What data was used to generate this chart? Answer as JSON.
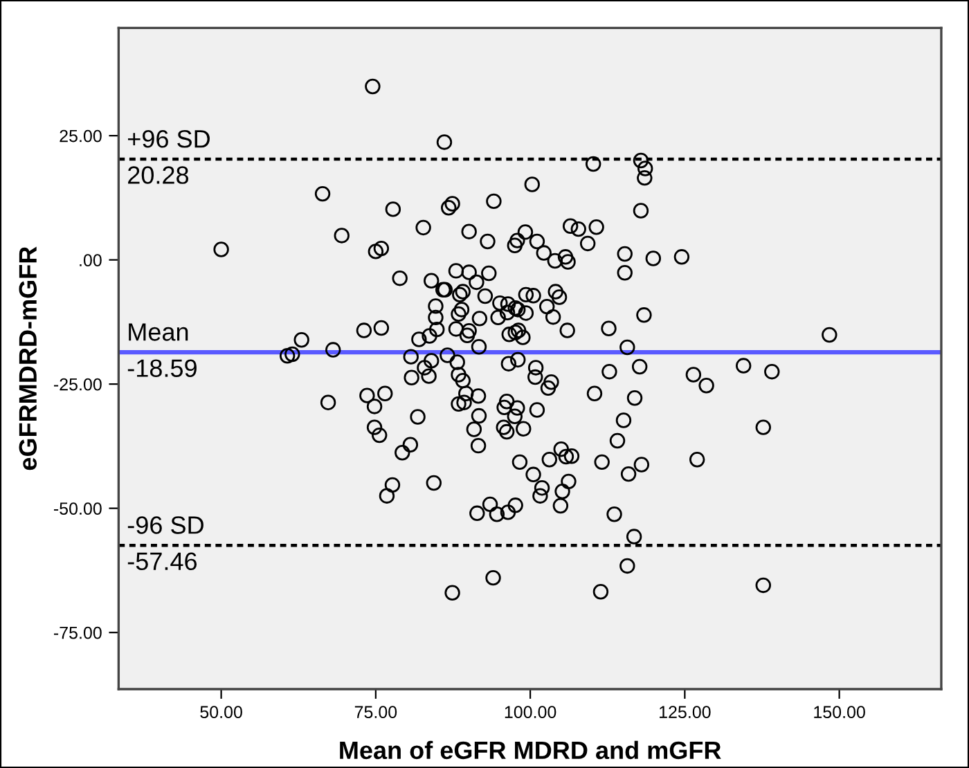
{
  "chart_data": {
    "type": "scatter",
    "xlabel": "Mean of eGFR MDRD and mGFR",
    "ylabel": "eGFRMDRD-mGFR",
    "xlim": [
      33.4,
      166.5
    ],
    "ylim": [
      -86.4,
      46.7
    ],
    "xticks": [
      {
        "value": 50,
        "label": "50.00"
      },
      {
        "value": 75,
        "label": "75.00"
      },
      {
        "value": 100,
        "label": "100.00"
      },
      {
        "value": 125,
        "label": "125.00"
      },
      {
        "value": 150,
        "label": "150.00"
      }
    ],
    "yticks": [
      {
        "value": -75,
        "label": "-75.00"
      },
      {
        "value": -50,
        "label": "-50.00"
      },
      {
        "value": -25,
        "label": "-25.00"
      },
      {
        "value": 0,
        "label": ".00"
      },
      {
        "value": 25,
        "label": "25.00"
      }
    ],
    "grid": false,
    "legend": false,
    "marker": "circle",
    "ref_lines": [
      {
        "axis": "y",
        "value": 20.28,
        "label": "+96 SD\n20.28",
        "color": "#000000",
        "line_style": "dotted"
      },
      {
        "axis": "y",
        "value": -18.59,
        "label": "Mean\n-18.59",
        "color": "#5a5aff",
        "line_style": "solid"
      },
      {
        "axis": "y",
        "value": -57.46,
        "label": "-96 SD\n-57.46",
        "color": "#000000",
        "line_style": "dotted"
      }
    ],
    "series": [
      {
        "color": "#000000",
        "x": [
          74.5,
          86.1,
          66.4,
          77.8,
          86.8,
          87.4,
          69.5,
          82.7,
          90.1,
          50.0,
          75.0,
          75.9,
          78.9,
          84.0,
          88.0,
          90.1,
          85.9,
          86.2,
          88.6,
          89.1,
          84.7,
          88.9,
          88.4,
          84.7,
          73.1,
          75.9,
          88.0,
          90.1,
          89.8,
          84.9,
          83.7,
          82.0,
          63.0,
          68.1,
          60.7,
          61.5,
          80.7,
          86.6,
          88.2,
          82.9,
          84.0,
          83.6,
          80.8,
          88.4,
          89.1,
          89.6,
          91.6,
          88.4,
          89.3,
          73.6,
          74.8,
          76.5,
          67.3,
          81.8,
          91.7,
          90.9,
          74.8,
          75.6,
          91.6,
          80.6,
          79.3,
          84.4,
          77.7,
          76.8,
          91.4,
          87.4,
          110.2,
          117.9,
          118.6,
          118.5,
          100.3,
          94.1,
          117.9,
          106.5,
          107.8,
          110.7,
          99.2,
          93.1,
          97.9,
          97.5,
          101.1,
          109.3,
          102.2,
          104.0,
          105.7,
          106.1,
          115.3,
          119.9,
          124.5,
          115.3,
          93.3,
          91.3,
          92.7,
          99.3,
          100.5,
          104.1,
          104.7,
          95.1,
          96.4,
          102.7,
          97.6,
          98.0,
          94.8,
          96.3,
          99.3,
          91.8,
          103.7,
          118.4,
          106.0,
          96.6,
          97.6,
          98.1,
          98.8,
          112.7,
          148.4,
          91.7,
          115.7,
          96.5,
          98.0,
          100.9,
          100.8,
          103.4,
          102.9,
          112.8,
          117.7,
          110.4,
          116.9,
          126.4,
          128.5,
          134.5,
          139.1,
          96.2,
          95.8,
          97.9,
          97.5,
          101.1,
          95.7,
          96.2,
          98.9,
          115.1,
          137.7,
          114.1,
          127.0,
          98.3,
          100.5,
          103.1,
          105.0,
          105.8,
          106.7,
          111.6,
          115.9,
          118.0,
          106.2,
          105.2,
          101.9,
          101.6,
          104.9,
          93.5,
          94.6,
          96.4,
          97.6,
          113.6,
          116.8,
          115.7,
          94.0,
          111.4,
          137.7
        ],
        "values": [
          34.9,
          23.7,
          13.3,
          10.2,
          10.5,
          11.3,
          4.9,
          6.5,
          5.7,
          2.1,
          1.7,
          2.3,
          -3.7,
          -4.2,
          -2.2,
          -2.5,
          -6.0,
          -6.0,
          -7.0,
          -6.4,
          -9.3,
          -10.0,
          -10.9,
          -11.6,
          -14.2,
          -13.7,
          -13.9,
          -14.3,
          -15.2,
          -14.0,
          -15.3,
          -16.0,
          -16.1,
          -18.1,
          -19.3,
          -19.0,
          -19.5,
          -19.2,
          -20.6,
          -21.7,
          -20.3,
          -23.4,
          -23.7,
          -23.1,
          -24.3,
          -26.9,
          -27.4,
          -29.0,
          -28.7,
          -27.3,
          -29.5,
          -26.9,
          -28.7,
          -31.6,
          -31.4,
          -34.1,
          -33.7,
          -35.3,
          -37.4,
          -37.2,
          -38.8,
          -44.9,
          -45.3,
          -47.5,
          -51.0,
          -67.0,
          19.3,
          20.0,
          18.4,
          16.5,
          15.2,
          11.8,
          9.9,
          6.8,
          6.2,
          6.6,
          5.6,
          3.7,
          3.9,
          2.9,
          3.7,
          3.3,
          1.4,
          -0.2,
          0.6,
          -0.4,
          1.2,
          0.3,
          0.6,
          -2.6,
          -2.7,
          -4.5,
          -7.3,
          -7.0,
          -7.2,
          -6.4,
          -7.5,
          -8.7,
          -8.9,
          -9.4,
          -9.7,
          -10.0,
          -11.6,
          -10.6,
          -10.7,
          -11.8,
          -11.5,
          -11.1,
          -14.2,
          -15.0,
          -14.6,
          -14.2,
          -15.6,
          -13.8,
          -15.1,
          -17.5,
          -17.6,
          -20.9,
          -20.1,
          -21.7,
          -23.6,
          -24.6,
          -25.8,
          -22.5,
          -21.5,
          -26.9,
          -27.8,
          -23.1,
          -25.3,
          -21.3,
          -22.5,
          -28.5,
          -29.7,
          -29.8,
          -31.5,
          -30.2,
          -33.7,
          -34.6,
          -34.0,
          -32.3,
          -33.7,
          -36.4,
          -40.2,
          -40.7,
          -43.2,
          -40.2,
          -38.1,
          -39.6,
          -39.5,
          -40.7,
          -43.1,
          -41.2,
          -44.6,
          -46.6,
          -45.9,
          -47.5,
          -49.5,
          -49.2,
          -51.2,
          -50.8,
          -49.4,
          -51.2,
          -55.7,
          -61.6,
          -64.0,
          -66.8,
          -65.5
        ]
      }
    ]
  }
}
